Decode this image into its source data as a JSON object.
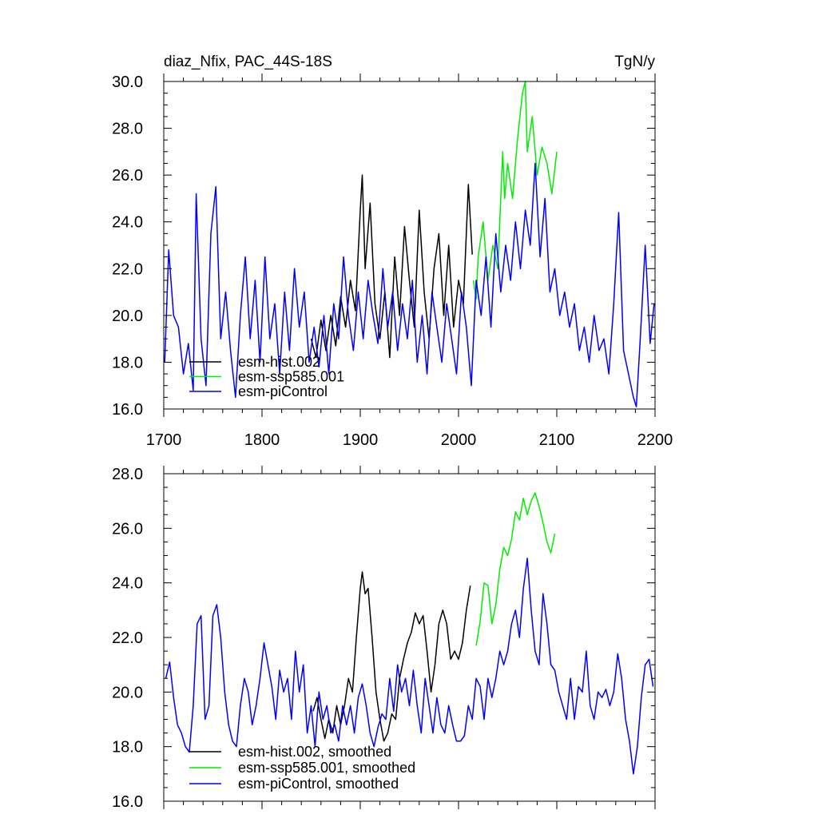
{
  "chart_data": [
    {
      "type": "line",
      "title": "diaz_Nfix, PAC_44S-18S",
      "units": "TgN/y",
      "xlim": [
        1700,
        2200
      ],
      "ylim": [
        16.0,
        30.0
      ],
      "xticks": [
        "1700",
        "1800",
        "1900",
        "2000",
        "2100",
        "2200"
      ],
      "yticks": [
        "16.0",
        "18.0",
        "20.0",
        "22.0",
        "24.0",
        "26.0",
        "28.0",
        "30.0"
      ],
      "legend_position": "bottom-left",
      "series": [
        {
          "name": "esm-hist.002",
          "color": "#000000",
          "x": [
            1850,
            1855,
            1860,
            1865,
            1870,
            1875,
            1880,
            1885,
            1890,
            1895,
            1900,
            1902,
            1905,
            1910,
            1915,
            1920,
            1925,
            1930,
            1935,
            1940,
            1945,
            1950,
            1955,
            1960,
            1965,
            1970,
            1975,
            1980,
            1985,
            1990,
            1995,
            2000,
            2005,
            2010,
            2014
          ],
          "y": [
            19.0,
            18.2,
            19.8,
            18.5,
            20.0,
            18.7,
            20.8,
            19.5,
            21.5,
            20.2,
            24.5,
            26.0,
            22.0,
            24.8,
            20.5,
            19.0,
            21.0,
            18.2,
            22.5,
            20.0,
            23.8,
            21.5,
            19.5,
            24.5,
            21.0,
            19.0,
            22.0,
            23.5,
            20.0,
            23.0,
            19.5,
            21.5,
            20.5,
            25.6,
            22.6
          ]
        },
        {
          "name": "esm-ssp585.001",
          "color": "#00ee00",
          "x": [
            2015,
            2018,
            2020,
            2025,
            2030,
            2035,
            2040,
            2045,
            2047,
            2050,
            2055,
            2060,
            2065,
            2068,
            2070,
            2075,
            2080,
            2085,
            2090,
            2095,
            2100
          ],
          "y": [
            21.5,
            20.7,
            22.5,
            24.0,
            21.5,
            23.0,
            22.0,
            27.0,
            25.0,
            26.5,
            25.0,
            27.5,
            29.5,
            30.0,
            27.0,
            28.5,
            26.0,
            27.2,
            26.5,
            25.2,
            27.0
          ]
        },
        {
          "name": "esm-piControl",
          "color": "#0000ff",
          "x": [
            1701,
            1705,
            1710,
            1715,
            1720,
            1725,
            1730,
            1733,
            1738,
            1743,
            1748,
            1753,
            1758,
            1763,
            1768,
            1773,
            1778,
            1783,
            1788,
            1793,
            1798,
            1803,
            1808,
            1813,
            1818,
            1823,
            1828,
            1833,
            1838,
            1843,
            1848,
            1853,
            1858,
            1863,
            1868,
            1873,
            1878,
            1883,
            1888,
            1893,
            1898,
            1903,
            1908,
            1913,
            1918,
            1923,
            1928,
            1933,
            1938,
            1943,
            1948,
            1953,
            1958,
            1963,
            1968,
            1973,
            1978,
            1983,
            1988,
            1993,
            1998,
            2003,
            2008,
            2013,
            2018,
            2023,
            2028,
            2033,
            2038,
            2043,
            2048,
            2053,
            2058,
            2063,
            2068,
            2073,
            2078,
            2083,
            2088,
            2093,
            2098,
            2103,
            2108,
            2113,
            2118,
            2123,
            2128,
            2133,
            2138,
            2143,
            2148,
            2153,
            2158,
            2163,
            2168,
            2173,
            2178,
            2181,
            2185,
            2190,
            2195,
            2199
          ],
          "y": [
            18.0,
            22.8,
            20.0,
            19.5,
            17.5,
            18.8,
            16.8,
            25.2,
            19.0,
            17.0,
            23.5,
            25.5,
            19.0,
            21.0,
            18.5,
            16.5,
            20.0,
            22.5,
            19.0,
            21.5,
            18.0,
            22.5,
            19.0,
            20.5,
            17.5,
            21.0,
            18.5,
            22.0,
            19.5,
            21.0,
            18.0,
            19.5,
            17.8,
            20.0,
            17.5,
            20.5,
            19.0,
            22.5,
            20.0,
            18.5,
            21.0,
            19.0,
            21.5,
            20.0,
            18.8,
            22.0,
            19.5,
            21.0,
            18.5,
            20.5,
            19.0,
            21.5,
            18.0,
            20.0,
            17.5,
            21.0,
            19.5,
            18.0,
            20.5,
            19.0,
            17.5,
            21.0,
            19.5,
            17.0,
            21.5,
            20.0,
            22.5,
            19.5,
            23.5,
            21.0,
            23.0,
            21.5,
            24.0,
            22.0,
            24.5,
            23.0,
            26.5,
            22.5,
            25.0,
            21.0,
            22.0,
            20.0,
            21.0,
            19.5,
            20.5,
            18.5,
            19.5,
            18.0,
            20.0,
            18.5,
            19.0,
            17.5,
            20.5,
            24.4,
            18.5,
            17.5,
            16.5,
            16.1,
            19.0,
            23.0,
            18.8,
            20.5
          ]
        }
      ]
    },
    {
      "type": "line",
      "title": "",
      "xlim": [
        1700,
        2200
      ],
      "ylim": [
        16.0,
        28.0
      ],
      "yticks": [
        "16.0",
        "18.0",
        "20.0",
        "22.0",
        "24.0",
        "26.0",
        "28.0"
      ],
      "legend_position": "bottom-left",
      "series": [
        {
          "name": "esm-hist.002, smoothed",
          "color": "#000000",
          "x": [
            1852,
            1856,
            1860,
            1864,
            1868,
            1872,
            1876,
            1880,
            1884,
            1888,
            1892,
            1896,
            1900,
            1902,
            1905,
            1908,
            1912,
            1916,
            1920,
            1924,
            1928,
            1932,
            1936,
            1940,
            1944,
            1948,
            1952,
            1956,
            1960,
            1964,
            1968,
            1972,
            1976,
            1980,
            1984,
            1988,
            1992,
            1996,
            2000,
            2004,
            2008,
            2012
          ],
          "y": [
            19.3,
            19.8,
            19.0,
            18.3,
            19.0,
            18.5,
            19.5,
            18.8,
            19.5,
            20.5,
            20.0,
            22.0,
            23.8,
            24.4,
            23.6,
            23.8,
            22.0,
            20.0,
            19.0,
            18.2,
            18.5,
            19.2,
            19.0,
            20.5,
            21.2,
            21.8,
            22.2,
            22.9,
            22.5,
            22.8,
            21.5,
            20.0,
            21.0,
            22.5,
            23.0,
            22.5,
            21.2,
            21.5,
            21.2,
            21.8,
            23.0,
            23.9
          ]
        },
        {
          "name": "esm-ssp585.001, smoothed",
          "color": "#00ee00",
          "x": [
            2018,
            2022,
            2026,
            2030,
            2034,
            2038,
            2042,
            2046,
            2050,
            2054,
            2058,
            2062,
            2066,
            2070,
            2074,
            2078,
            2082,
            2086,
            2090,
            2094,
            2098
          ],
          "y": [
            21.7,
            22.6,
            24.0,
            23.9,
            22.5,
            23.2,
            24.5,
            25.3,
            25.0,
            25.6,
            26.6,
            26.3,
            27.1,
            26.5,
            27.0,
            27.3,
            26.8,
            26.2,
            25.5,
            25.1,
            25.8
          ]
        },
        {
          "name": "esm-piControl, smoothed",
          "color": "#0000ff",
          "x": [
            1702,
            1706,
            1710,
            1714,
            1718,
            1722,
            1726,
            1730,
            1734,
            1738,
            1742,
            1746,
            1750,
            1754,
            1758,
            1762,
            1766,
            1770,
            1774,
            1778,
            1782,
            1786,
            1790,
            1794,
            1798,
            1802,
            1806,
            1810,
            1814,
            1818,
            1822,
            1826,
            1830,
            1834,
            1838,
            1842,
            1846,
            1850,
            1854,
            1858,
            1862,
            1866,
            1870,
            1874,
            1878,
            1882,
            1886,
            1890,
            1894,
            1898,
            1902,
            1906,
            1910,
            1914,
            1918,
            1922,
            1926,
            1930,
            1934,
            1938,
            1942,
            1946,
            1950,
            1954,
            1958,
            1962,
            1966,
            1970,
            1974,
            1978,
            1982,
            1986,
            1990,
            1994,
            1998,
            2002,
            2006,
            2010,
            2014,
            2018,
            2022,
            2026,
            2030,
            2034,
            2038,
            2042,
            2046,
            2050,
            2054,
            2058,
            2062,
            2066,
            2070,
            2074,
            2078,
            2082,
            2086,
            2090,
            2094,
            2098,
            2102,
            2106,
            2110,
            2114,
            2118,
            2122,
            2126,
            2130,
            2134,
            2138,
            2142,
            2146,
            2150,
            2154,
            2158,
            2162,
            2166,
            2170,
            2174,
            2178,
            2182,
            2186,
            2190,
            2194,
            2198
          ],
          "y": [
            20.5,
            21.1,
            19.8,
            18.8,
            18.5,
            18.0,
            17.8,
            19.5,
            22.5,
            22.8,
            19.0,
            19.5,
            22.8,
            23.2,
            22.0,
            20.0,
            18.8,
            18.2,
            18.0,
            19.5,
            20.5,
            20.0,
            18.8,
            19.5,
            20.5,
            21.8,
            21.0,
            20.2,
            19.0,
            20.8,
            20.0,
            20.5,
            19.0,
            21.5,
            20.0,
            21.0,
            18.5,
            19.5,
            18.0,
            20.0,
            19.0,
            19.5,
            18.5,
            18.8,
            18.2,
            19.5,
            18.8,
            19.5,
            18.5,
            19.8,
            20.3,
            19.5,
            18.5,
            18.0,
            18.7,
            19.2,
            19.0,
            20.5,
            19.3,
            21.0,
            20.0,
            20.5,
            19.5,
            20.8,
            19.5,
            18.5,
            20.5,
            19.5,
            18.5,
            19.8,
            18.8,
            18.5,
            19.5,
            18.8,
            18.2,
            18.2,
            18.4,
            19.5,
            19.0,
            20.5,
            20.2,
            19.0,
            20.5,
            19.8,
            20.5,
            21.5,
            21.0,
            21.5,
            22.5,
            23.0,
            22.0,
            23.8,
            24.9,
            23.0,
            21.5,
            21.0,
            23.6,
            22.5,
            21.0,
            20.8,
            20.0,
            19.5,
            19.0,
            20.5,
            19.0,
            20.2,
            20.0,
            21.5,
            19.5,
            19.0,
            20.0,
            19.8,
            20.1,
            19.5,
            20.0,
            21.4,
            20.5,
            19.0,
            18.2,
            17.0,
            18.0,
            19.8,
            21.0,
            21.2,
            20.2
          ]
        }
      ]
    }
  ]
}
